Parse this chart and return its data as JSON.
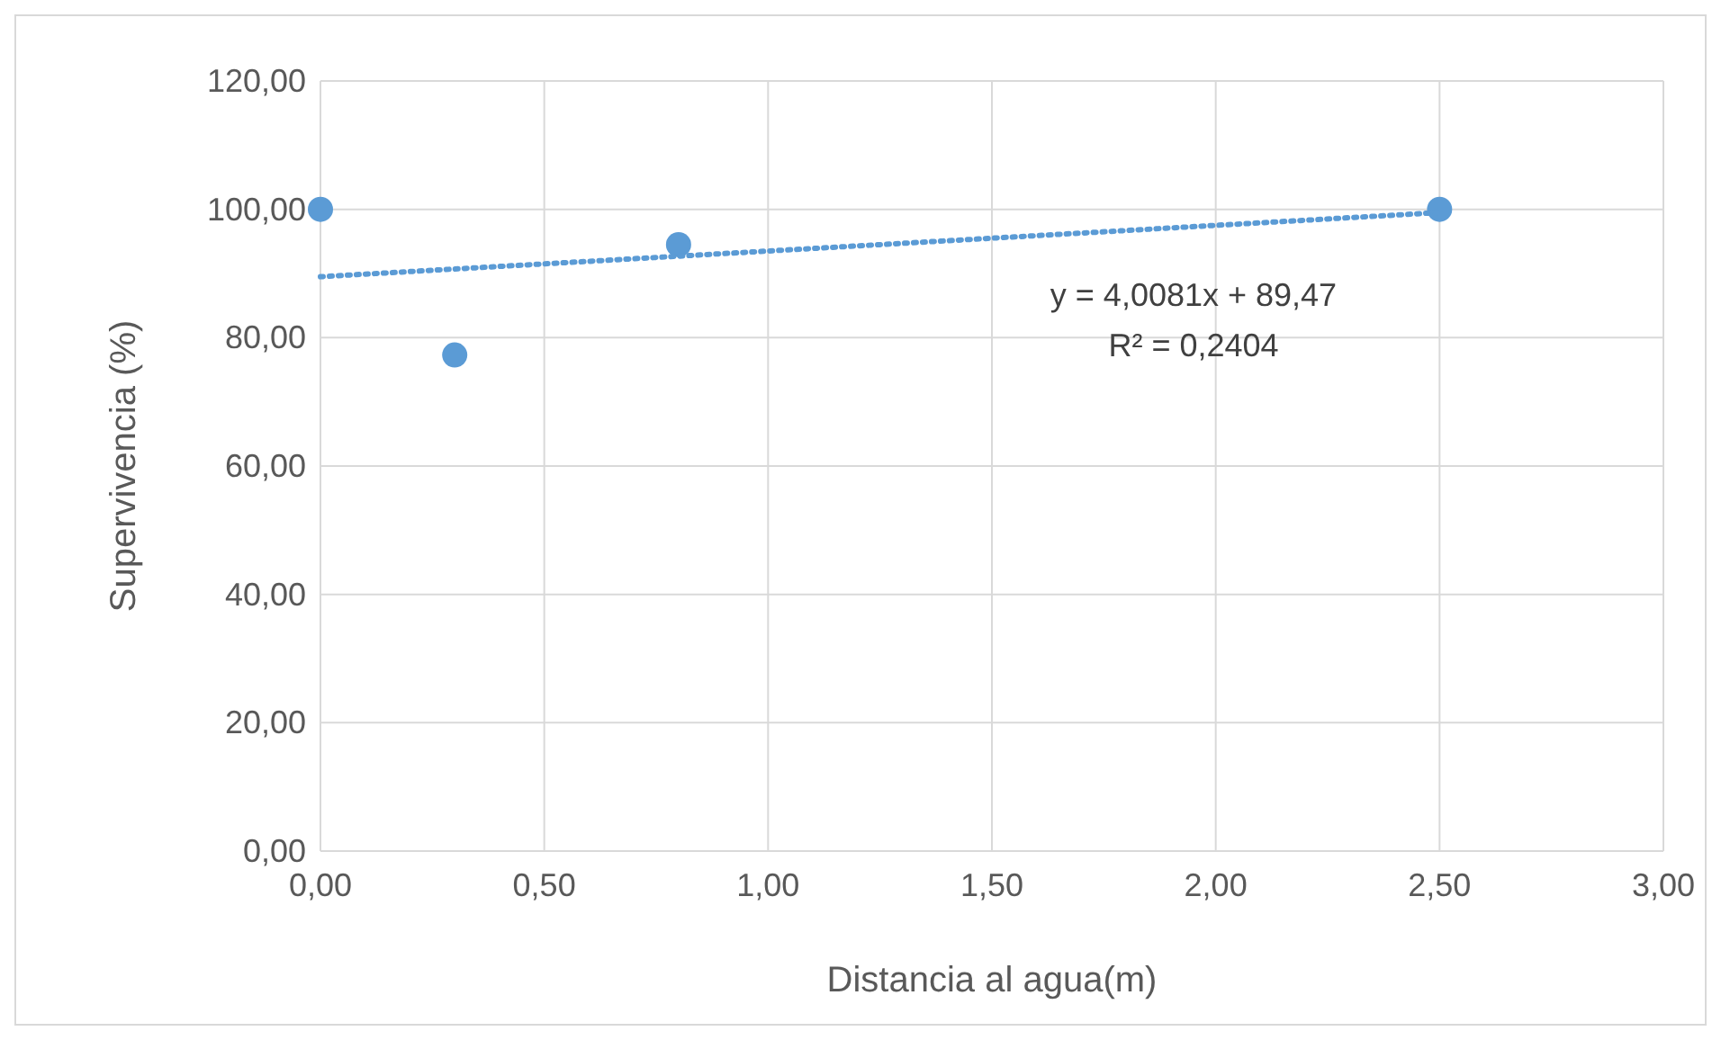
{
  "chart_data": {
    "type": "scatter",
    "xlabel": "Distancia al agua(m)",
    "ylabel": "Supervivencia (%)",
    "xlim": [
      0,
      3
    ],
    "ylim": [
      0,
      120
    ],
    "xticks": [
      {
        "value": 0,
        "label": "0,00"
      },
      {
        "value": 0.5,
        "label": "0,50"
      },
      {
        "value": 1,
        "label": "1,00"
      },
      {
        "value": 1.5,
        "label": "1,50"
      },
      {
        "value": 2,
        "label": "2,00"
      },
      {
        "value": 2.5,
        "label": "2,50"
      },
      {
        "value": 3,
        "label": "3,00"
      }
    ],
    "yticks": [
      {
        "value": 0,
        "label": "0,00"
      },
      {
        "value": 20,
        "label": "20,00"
      },
      {
        "value": 40,
        "label": "40,00"
      },
      {
        "value": 60,
        "label": "60,00"
      },
      {
        "value": 80,
        "label": "80,00"
      },
      {
        "value": 100,
        "label": "100,00"
      },
      {
        "value": 120,
        "label": "120,00"
      }
    ],
    "grid": true,
    "series": [
      {
        "marker": "circle",
        "color": "#5b9bd5",
        "x": [
          0,
          0.3,
          0.8,
          2.5
        ],
        "values": [
          100,
          77.3,
          94.5,
          100
        ]
      },
      {
        "type": "line",
        "color": "#5b9bd5",
        "line_style": "dotted",
        "x": [
          0,
          2.5
        ],
        "values": [
          89.5,
          99.5
        ]
      }
    ],
    "annotations": [
      "y = 4,0081x + 89,47",
      "R² = 0,2404"
    ]
  }
}
